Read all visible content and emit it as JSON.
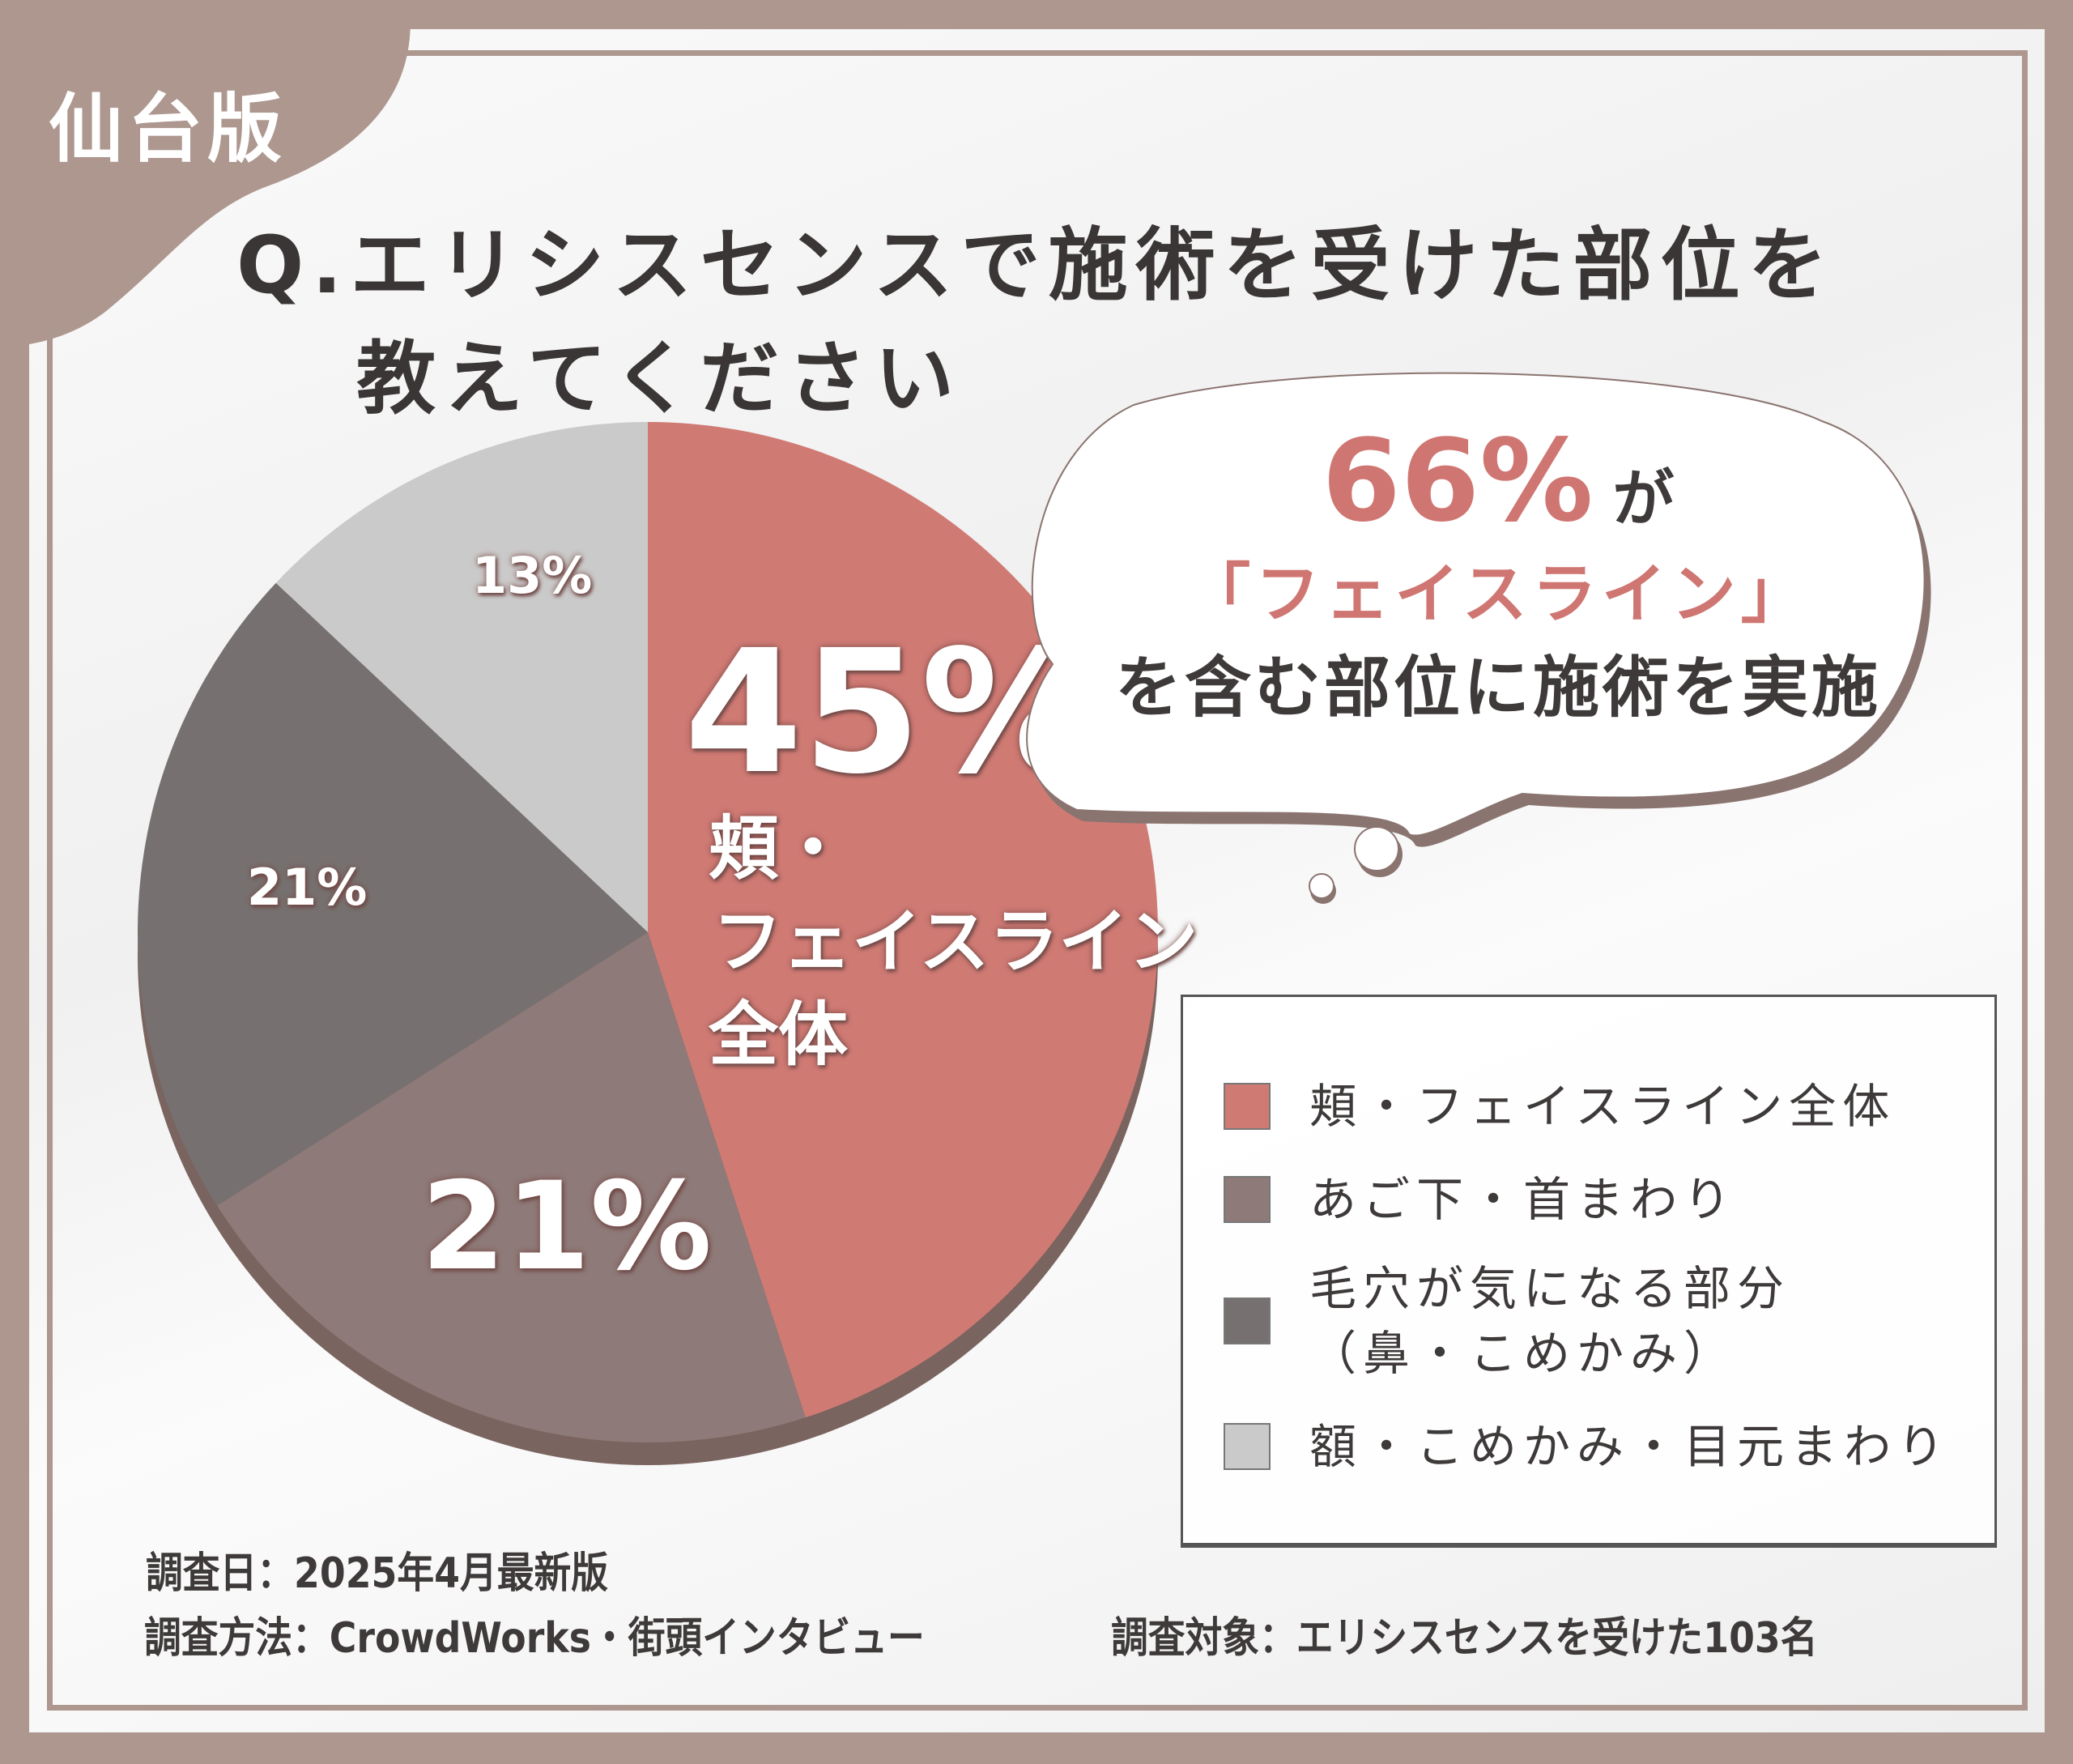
{
  "badge": "仙台版",
  "title": {
    "line1": "Q.エリシスセンスで施術を受けた部位を",
    "line2": "教えてください"
  },
  "callout": {
    "percent": "66%",
    "particle": "が",
    "highlight": "「フェイスライン」",
    "text": "を含む部位に施術を実施"
  },
  "chart_data": {
    "type": "pie",
    "categories": [
      "頬・フェイスライン全体",
      "あご下・首まわり",
      "毛穴が気になる部分（鼻・こめかみ）",
      "額・こめかみ・目元まわり"
    ],
    "values": [
      45,
      21,
      21,
      13
    ],
    "labels": [
      "45%",
      "21%",
      "21%",
      "13%"
    ],
    "slice_sublabel": [
      "頬・",
      "フェイスライン",
      "全体"
    ],
    "colors": [
      "#d07a74",
      "#8e7a78",
      "#767170",
      "#cbcaca"
    ],
    "legend_position": "right"
  },
  "legend": [
    {
      "lines": [
        "頬・フェイスライン全体"
      ],
      "color": "#d07a74"
    },
    {
      "lines": [
        "あご下・首まわり"
      ],
      "color": "#8e7a78"
    },
    {
      "lines": [
        "毛穴が気になる部分",
        "（鼻・こめかみ）"
      ],
      "color": "#767170"
    },
    {
      "lines": [
        "額・こめかみ・目元まわり"
      ],
      "color": "#cbcaca"
    }
  ],
  "footer": {
    "date": "調査日：2025年4月最新版",
    "method": "調査方法：CrowdWorks・街頭インタビュー",
    "target": "調査対象：エリシスセンスを受けた103名"
  }
}
